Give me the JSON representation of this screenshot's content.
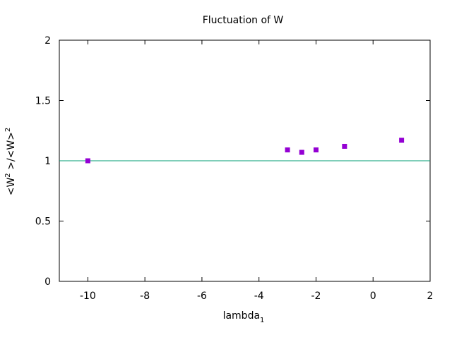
{
  "chart_data": {
    "type": "scatter",
    "title": "Fluctuation of W",
    "xlabel": {
      "base": "lambda",
      "subscript": "1"
    },
    "ylabel": {
      "parts": [
        "<W",
        "2",
        " >/<W>",
        "2"
      ]
    },
    "xlim": [
      -11,
      2
    ],
    "ylim": [
      0,
      2
    ],
    "xticks": [
      -10,
      -8,
      -6,
      -4,
      -2,
      0,
      2
    ],
    "yticks": [
      0,
      0.5,
      1,
      1.5,
      2
    ],
    "xtick_labels": [
      "-10",
      "-8",
      "-6",
      "-4",
      "-2",
      "0",
      "2"
    ],
    "ytick_labels": [
      "0",
      "0.5",
      "1",
      "1.5",
      "2"
    ],
    "grid": false,
    "legend": false,
    "series": [
      {
        "points": [
          {
            "x": -10,
            "y": 1.0
          },
          {
            "x": -3,
            "y": 1.09
          },
          {
            "x": -2.5,
            "y": 1.07
          },
          {
            "x": -2,
            "y": 1.09
          },
          {
            "x": -1,
            "y": 1.12
          },
          {
            "x": 1,
            "y": 1.17
          }
        ],
        "color": "#9400d3",
        "marker": "square"
      }
    ],
    "reference_line": {
      "y": 1,
      "color": "#009e73"
    }
  }
}
